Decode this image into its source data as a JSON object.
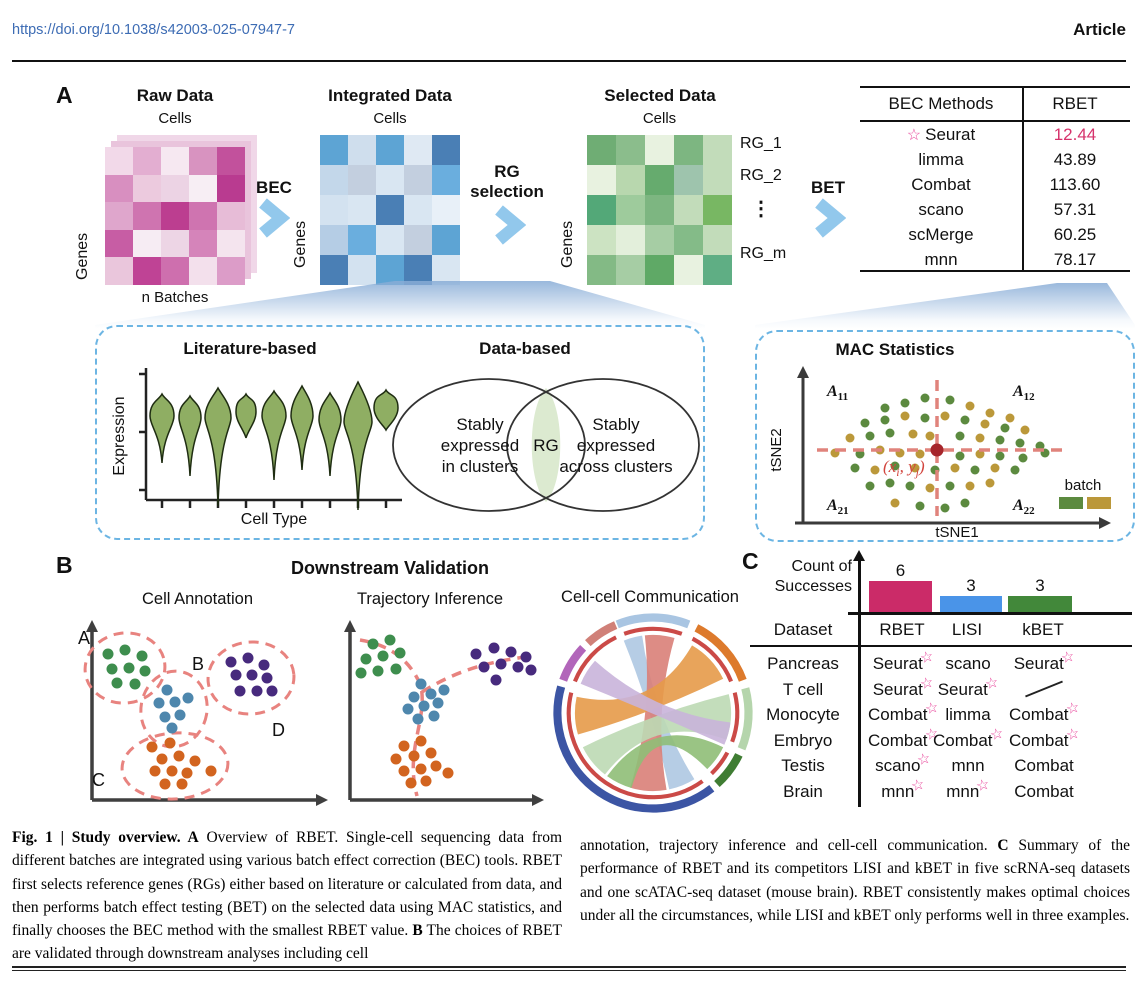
{
  "header": {
    "doi": "https://doi.org/10.1038/s42003-025-07947-7",
    "article_label": "Article"
  },
  "panelA": {
    "label": "A",
    "bec_arrow_label": "BEC",
    "rg_selection_lines": [
      "RG",
      "selection"
    ],
    "bet_arrow_label": "BET",
    "raw": {
      "title": "Raw Data",
      "cells": "Cells",
      "genes": "Genes",
      "batches": "n Batches",
      "heatmap": [
        [
          "#f2d9e9",
          "#e3aed1",
          "#f6e8f1",
          "#d893c0",
          "#c2519c"
        ],
        [
          "#d88fc0",
          "#eccade",
          "#ecd3e4",
          "#f7eef4",
          "#b93b90"
        ],
        [
          "#dfa6cc",
          "#cf74b0",
          "#bc3e90",
          "#cf74b0",
          "#e7bcd7"
        ],
        [
          "#c75da4",
          "#f6ecf3",
          "#edd5e5",
          "#d584ba",
          "#f4e4ee"
        ],
        [
          "#eac6dc",
          "#bf4395",
          "#ce6fae",
          "#f3e0ec",
          "#dc9cc8"
        ]
      ]
    },
    "integrated": {
      "title": "Integrated Data",
      "cells": "Cells",
      "genes": "Genes",
      "heatmap": [
        [
          "#5da4d4",
          "#cfdeed",
          "#5da4d4",
          "#dfe9f3",
          "#4a7fb5"
        ],
        [
          "#c3d7ea",
          "#c3cfdf",
          "#d9e6f2",
          "#c3cfdf",
          "#6aaede"
        ],
        [
          "#d3e2f0",
          "#d9e6f2",
          "#4a7fb5",
          "#d9e6f2",
          "#e8f0f8"
        ],
        [
          "#b5cde5",
          "#6aaede",
          "#d9e6f2",
          "#c3cfdf",
          "#5da4d4"
        ],
        [
          "#4a7fb5",
          "#d3e2f0",
          "#5da4d4",
          "#4a7fb5",
          "#d9e6f2"
        ]
      ]
    },
    "selected": {
      "title": "Selected Data",
      "cells": "Cells",
      "genes": "Genes",
      "rg_labels": [
        "RG_1",
        "RG_2",
        "⋮",
        "RG_m"
      ],
      "heatmap": [
        [
          "#6fad74",
          "#8bbd8c",
          "#e8f2e0",
          "#7db681",
          "#c2dcba"
        ],
        [
          "#e8f2e0",
          "#b8d7ae",
          "#66ab6e",
          "#9ec4ad",
          "#c2dcba"
        ],
        [
          "#53a878",
          "#9ecb9c",
          "#7db681",
          "#c2dcba",
          "#78b763"
        ],
        [
          "#cce3c2",
          "#e3efdb",
          "#a6cda4",
          "#84bb88",
          "#c2dcba"
        ],
        [
          "#83ba85",
          "#a6cda4",
          "#5fa966",
          "#e8f2e0",
          "#5fae84"
        ]
      ]
    },
    "bec_table": {
      "headers": [
        "BEC Methods",
        "RBET"
      ],
      "rows": [
        {
          "method": "Seurat",
          "value": "12.44",
          "star": true,
          "highlight": true
        },
        {
          "method": "limma",
          "value": "43.89",
          "star": false,
          "highlight": false
        },
        {
          "method": "Combat",
          "value": "113.60",
          "star": false,
          "highlight": false
        },
        {
          "method": "scano",
          "value": "57.31",
          "star": false,
          "highlight": false
        },
        {
          "method": "scMerge",
          "value": "60.25",
          "star": false,
          "highlight": false
        },
        {
          "method": "mnn",
          "value": "78.17",
          "star": false,
          "highlight": false
        }
      ]
    }
  },
  "literature": {
    "title": "Literature-based",
    "ylabel": "Expression",
    "xlabel": "Cell Type",
    "violin_count": 9
  },
  "data_based": {
    "title": "Data-based",
    "left_label_lines": [
      "Stably",
      "expressed",
      "in clusters"
    ],
    "center_label": "RG",
    "right_label_lines": [
      "Stably",
      "expressed",
      "across clusters"
    ]
  },
  "mac": {
    "title": "MAC Statistics",
    "xlabel": "tSNE1",
    "ylabel": "tSNE2",
    "quadrants": [
      {
        "base": "A",
        "sub": "11"
      },
      {
        "base": "A",
        "sub": "12"
      },
      {
        "base": "A",
        "sub": "21"
      },
      {
        "base": "A",
        "sub": "22"
      }
    ],
    "point_label_parts": [
      "(x",
      "i",
      ", y",
      "j",
      ")"
    ],
    "legend_label": "batch",
    "batch_colors": [
      "#5c8a3f",
      "#bb983a"
    ]
  },
  "panelB": {
    "label": "B",
    "title": "Downstream Validation",
    "annotation_title": "Cell Annotation",
    "trajectory_title": "Trajectory Inference",
    "communication_title": "Cell-cell Communication",
    "cluster_labels": [
      "A",
      "B",
      "C",
      "D"
    ]
  },
  "panelC": {
    "label": "C",
    "axis_label_lines": [
      "Count of",
      "Successes"
    ],
    "dataset_header": "Dataset",
    "rows": [
      {
        "dataset": "Pancreas",
        "cells": [
          {
            "t": "Seurat",
            "s": true
          },
          {
            "t": "scano",
            "s": false
          },
          {
            "t": "Seurat",
            "s": true
          }
        ]
      },
      {
        "dataset": "T cell",
        "cells": [
          {
            "t": "Seurat",
            "s": true
          },
          {
            "t": "Seurat",
            "s": true
          },
          {
            "slash": true
          }
        ]
      },
      {
        "dataset": "Monocyte",
        "cells": [
          {
            "t": "Combat",
            "s": true
          },
          {
            "t": "limma",
            "s": false
          },
          {
            "t": "Combat",
            "s": true
          }
        ]
      },
      {
        "dataset": "Embryo",
        "cells": [
          {
            "t": "Combat",
            "s": true
          },
          {
            "t": "Combat",
            "s": true
          },
          {
            "t": "Combat",
            "s": true
          }
        ]
      },
      {
        "dataset": "Testis",
        "cells": [
          {
            "t": "scano",
            "s": true
          },
          {
            "t": "mnn",
            "s": false
          },
          {
            "t": "Combat",
            "s": false
          }
        ]
      },
      {
        "dataset": "Brain",
        "cells": [
          {
            "t": "mnn",
            "s": true
          },
          {
            "t": "mnn",
            "s": true
          },
          {
            "t": "Combat",
            "s": false
          }
        ]
      }
    ]
  },
  "chart_data": {
    "type": "bar",
    "categories": [
      "RBET",
      "LISI",
      "kBET"
    ],
    "values": [
      6,
      3,
      3
    ],
    "title": "Count of Successes",
    "bar_colors": [
      "#cb2b68",
      "#4a94e8",
      "#42883a"
    ],
    "ylim": [
      0,
      6
    ],
    "legend_position": "none"
  },
  "caption": {
    "left_runs": [
      {
        "b": true,
        "t": "Fig. 1 | Study overview. "
      },
      {
        "b": true,
        "t": "A"
      },
      {
        "b": false,
        "t": " Overview of RBET. Single-cell sequencing data from different batches are integrated using various batch effect correction (BEC) tools. RBET first selects reference genes (RGs) either based on literature or calculated from data, and then performs batch effect testing (BET) on the selected data using MAC statistics, and finally chooses the BEC method with the smallest RBET value. "
      },
      {
        "b": true,
        "t": "B"
      },
      {
        "b": false,
        "t": " The choices of RBET are validated through downstream analyses including cell"
      }
    ],
    "right_runs": [
      {
        "b": false,
        "t": "annotation, trajectory inference and cell-cell communication. "
      },
      {
        "b": true,
        "t": "C"
      },
      {
        "b": false,
        "t": " Summary of the performance of RBET and its competitors LISI and kBET in five scRNA-seq datasets and one scATAC-seq dataset (mouse brain). RBET consistently makes optimal choices under all the circumstances, while LISI and kBET only performs well in three examples."
      }
    ]
  },
  "colors": {
    "accent_pink": "#d6336c",
    "star_pink": "#e8489c",
    "chevron_blue": "#92c8ec",
    "dash_box_blue": "#6cb5e3",
    "traj_dash": "#e8837f",
    "cluster_green": "#3e8e4e",
    "cluster_blue": "#4e87ad",
    "cluster_purple": "#472a7d",
    "cluster_orange": "#d2641f",
    "violin_green": "#8fae63",
    "venn_fill": "#dcead0"
  }
}
